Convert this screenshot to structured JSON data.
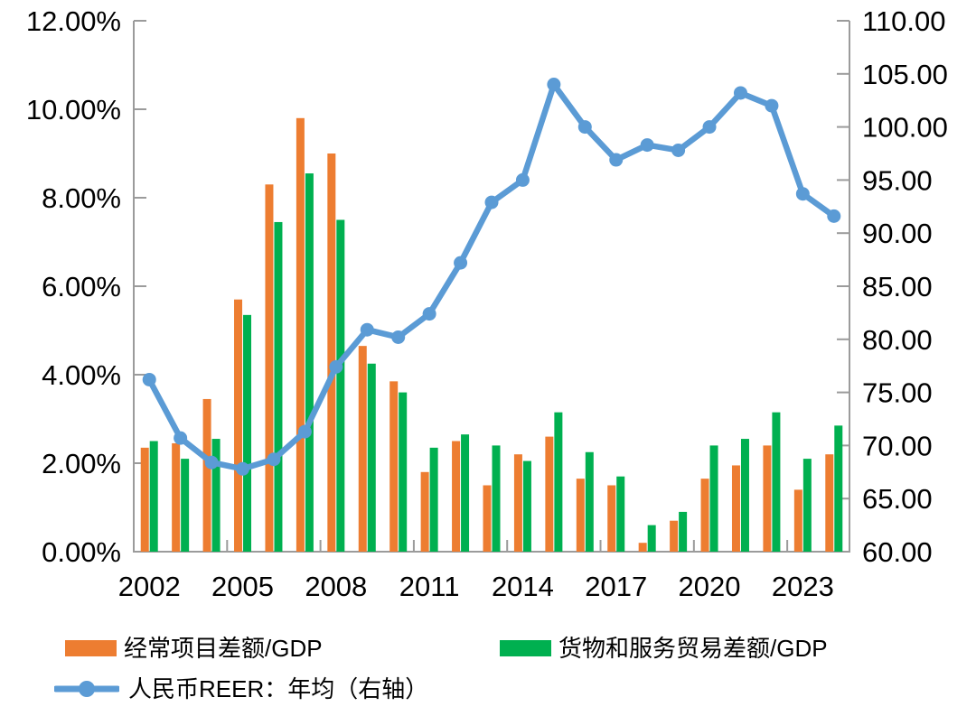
{
  "chart_data": {
    "type": "bar",
    "subtype": "grouped-bars-with-line-overlay",
    "title": "",
    "categories": [
      2002,
      2003,
      2004,
      2005,
      2006,
      2007,
      2008,
      2009,
      2010,
      2011,
      2012,
      2013,
      2014,
      2015,
      2016,
      2017,
      2018,
      2019,
      2020,
      2021,
      2022,
      2023,
      2024
    ],
    "series": [
      {
        "name": "经常项目差额/GDP",
        "type": "bar",
        "axis": "left",
        "color": "#ED7D31",
        "values": [
          2.35,
          2.45,
          3.45,
          5.7,
          8.3,
          9.8,
          9.0,
          4.65,
          3.85,
          1.8,
          2.5,
          1.5,
          2.2,
          2.6,
          1.65,
          1.5,
          0.2,
          0.7,
          1.65,
          1.95,
          2.4,
          1.4,
          2.2
        ]
      },
      {
        "name": "货物和服务贸易差额/GDP",
        "type": "bar",
        "axis": "left",
        "color": "#00B050",
        "values": [
          2.5,
          2.1,
          2.55,
          5.35,
          7.45,
          8.55,
          7.5,
          4.25,
          3.6,
          2.35,
          2.65,
          2.4,
          2.05,
          3.15,
          2.25,
          1.7,
          0.6,
          0.9,
          2.4,
          2.55,
          3.15,
          2.1,
          2.85
        ]
      },
      {
        "name": "人民币REER：年均（右轴）",
        "type": "line",
        "axis": "right",
        "color": "#5B9BD5",
        "values": [
          76.2,
          70.7,
          68.4,
          67.8,
          68.7,
          71.3,
          77.4,
          80.9,
          80.2,
          82.4,
          87.2,
          92.9,
          95.0,
          104.0,
          100.0,
          96.9,
          98.3,
          97.8,
          100.0,
          103.2,
          102.0,
          93.7,
          91.6
        ]
      }
    ],
    "left_axis": {
      "min": 0,
      "max": 12,
      "step": 2,
      "tick_labels": [
        "0.00%",
        "2.00%",
        "4.00%",
        "6.00%",
        "8.00%",
        "10.00%",
        "12.00%"
      ]
    },
    "right_axis": {
      "min": 60,
      "max": 110,
      "step": 5,
      "tick_labels": [
        "60.00",
        "65.00",
        "70.00",
        "75.00",
        "80.00",
        "85.00",
        "90.00",
        "95.00",
        "100.00",
        "105.00",
        "110.00"
      ]
    },
    "x_axis": {
      "label_interval": 3,
      "tick_labels": [
        "2002",
        "2005",
        "2008",
        "2011",
        "2014",
        "2017",
        "2020",
        "2023"
      ]
    },
    "grid": "off",
    "legend_position": "bottom-left",
    "axis_color": "#9B9B9B",
    "text_color": "#000000"
  },
  "legend": {
    "items": [
      {
        "label": "经常项目差额/GDP"
      },
      {
        "label": "货物和服务贸易差额/GDP"
      },
      {
        "label": "人民币REER：年均（右轴）"
      }
    ]
  }
}
